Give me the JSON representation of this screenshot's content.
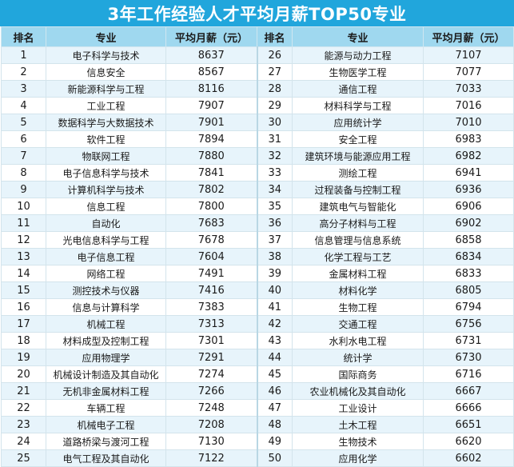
{
  "title": "3年工作经验人才平均月薪TOP50专业",
  "headers": {
    "rank": "排名",
    "major": "专业",
    "salary": "平均月薪（元）",
    "rank2": "排名",
    "major2": "专业",
    "salary2": "平均月薪（元）"
  },
  "rows": [
    {
      "rank": "1",
      "major": "电子科学与技术",
      "salary": "8637",
      "rank2": "26",
      "major2": "能源与动力工程",
      "salary2": "7107"
    },
    {
      "rank": "2",
      "major": "信息安全",
      "salary": "8567",
      "rank2": "27",
      "major2": "生物医学工程",
      "salary2": "7077"
    },
    {
      "rank": "3",
      "major": "新能源科学与工程",
      "salary": "8116",
      "rank2": "28",
      "major2": "通信工程",
      "salary2": "7033"
    },
    {
      "rank": "4",
      "major": "工业工程",
      "salary": "7907",
      "rank2": "29",
      "major2": "材料科学与工程",
      "salary2": "7016"
    },
    {
      "rank": "5",
      "major": "数据科学与大数据技术",
      "salary": "7901",
      "rank2": "30",
      "major2": "应用统计学",
      "salary2": "7010"
    },
    {
      "rank": "6",
      "major": "软件工程",
      "salary": "7894",
      "rank2": "31",
      "major2": "安全工程",
      "salary2": "6983"
    },
    {
      "rank": "7",
      "major": "物联网工程",
      "salary": "7880",
      "rank2": "32",
      "major2": "建筑环境与能源应用工程",
      "salary2": "6982"
    },
    {
      "rank": "8",
      "major": "电子信息科学与技术",
      "salary": "7841",
      "rank2": "33",
      "major2": "测绘工程",
      "salary2": "6941"
    },
    {
      "rank": "9",
      "major": "计算机科学与技术",
      "salary": "7802",
      "rank2": "34",
      "major2": "过程装备与控制工程",
      "salary2": "6936"
    },
    {
      "rank": "10",
      "major": "信息工程",
      "salary": "7800",
      "rank2": "35",
      "major2": "建筑电气与智能化",
      "salary2": "6906"
    },
    {
      "rank": "11",
      "major": "自动化",
      "salary": "7683",
      "rank2": "36",
      "major2": "高分子材料与工程",
      "salary2": "6902"
    },
    {
      "rank": "12",
      "major": "光电信息科学与工程",
      "salary": "7678",
      "rank2": "37",
      "major2": "信息管理与信息系统",
      "salary2": "6858"
    },
    {
      "rank": "13",
      "major": "电子信息工程",
      "salary": "7604",
      "rank2": "38",
      "major2": "化学工程与工艺",
      "salary2": "6834"
    },
    {
      "rank": "14",
      "major": "网络工程",
      "salary": "7491",
      "rank2": "39",
      "major2": "金属材料工程",
      "salary2": "6833"
    },
    {
      "rank": "15",
      "major": "测控技术与仪器",
      "salary": "7416",
      "rank2": "40",
      "major2": "材料化学",
      "salary2": "6805"
    },
    {
      "rank": "16",
      "major": "信息与计算科学",
      "salary": "7383",
      "rank2": "41",
      "major2": "生物工程",
      "salary2": "6794"
    },
    {
      "rank": "17",
      "major": "机械工程",
      "salary": "7313",
      "rank2": "42",
      "major2": "交通工程",
      "salary2": "6756"
    },
    {
      "rank": "18",
      "major": "材料成型及控制工程",
      "salary": "7301",
      "rank2": "43",
      "major2": "水利水电工程",
      "salary2": "6731"
    },
    {
      "rank": "19",
      "major": "应用物理学",
      "salary": "7291",
      "rank2": "44",
      "major2": "统计学",
      "salary2": "6730"
    },
    {
      "rank": "20",
      "major": "机械设计制造及其自动化",
      "salary": "7274",
      "rank2": "45",
      "major2": "国际商务",
      "salary2": "6716"
    },
    {
      "rank": "21",
      "major": "无机非金属材料工程",
      "salary": "7266",
      "rank2": "46",
      "major2": "农业机械化及其自动化",
      "salary2": "6667"
    },
    {
      "rank": "22",
      "major": "车辆工程",
      "salary": "7248",
      "rank2": "47",
      "major2": "工业设计",
      "salary2": "6666"
    },
    {
      "rank": "23",
      "major": "机械电子工程",
      "salary": "7208",
      "rank2": "48",
      "major2": "土木工程",
      "salary2": "6651"
    },
    {
      "rank": "24",
      "major": "道路桥梁与渡河工程",
      "salary": "7130",
      "rank2": "49",
      "major2": "生物技术",
      "salary2": "6620"
    },
    {
      "rank": "25",
      "major": "电气工程及其自动化",
      "salary": "7122",
      "rank2": "50",
      "major2": "应用化学",
      "salary2": "6602"
    }
  ],
  "watermark": "",
  "colors": {
    "title_bg": "#21a6dc",
    "header_bg": "#9fd8ef",
    "row_alt_bg": "#e7f4fb",
    "row_bg": "#ffffff"
  }
}
